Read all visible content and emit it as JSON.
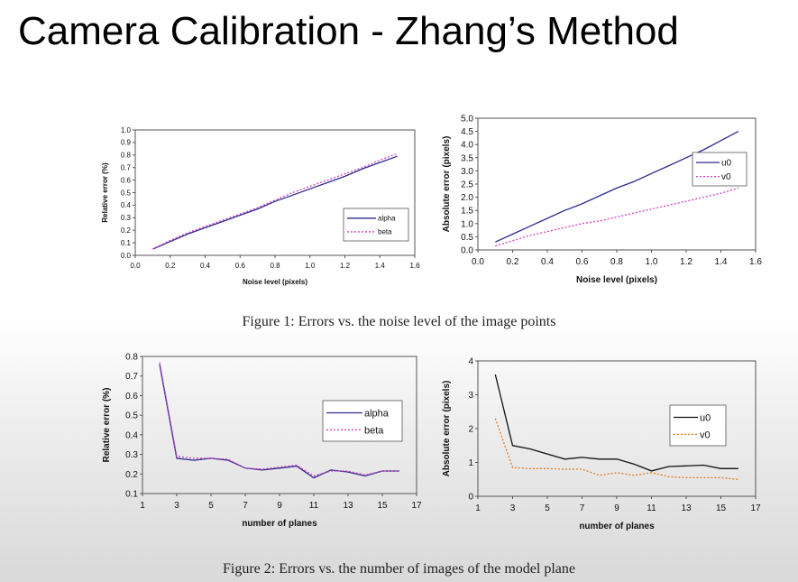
{
  "slide": {
    "title": "Camera Calibration - Zhang’s Method"
  },
  "figures": [
    {
      "caption": "Figure 1: Errors vs. the noise level of the image points"
    },
    {
      "caption": "Figure 2: Errors vs. the number of images of the model plane"
    }
  ],
  "chart_data": [
    {
      "type": "line",
      "xlabel": "Noise level (pixels)",
      "ylabel": "Relative error (%)",
      "xlim": [
        0,
        1.6
      ],
      "ylim": [
        0,
        1.0
      ],
      "xticks": [
        "0.0",
        "0.2",
        "0.4",
        "0.6",
        "0.8",
        "1.0",
        "1.2",
        "1.4",
        "1.6"
      ],
      "yticks": [
        "0.0",
        "0.1",
        "0.2",
        "0.3",
        "0.4",
        "0.5",
        "0.6",
        "0.7",
        "0.8",
        "0.9",
        "1.0"
      ],
      "grid": false,
      "legend_position": "bottom-right",
      "x": [
        0.1,
        0.2,
        0.3,
        0.4,
        0.5,
        0.6,
        0.7,
        0.8,
        0.9,
        1.0,
        1.1,
        1.2,
        1.3,
        1.4,
        1.5
      ],
      "series": [
        {
          "name": "alpha",
          "color": "#2b2b8c",
          "dash": "solid",
          "values": [
            0.05,
            0.11,
            0.17,
            0.22,
            0.27,
            0.32,
            0.37,
            0.43,
            0.48,
            0.53,
            0.58,
            0.63,
            0.69,
            0.74,
            0.79
          ]
        },
        {
          "name": "beta",
          "color": "#d23fc0",
          "dash": "dotted",
          "values": [
            0.05,
            0.12,
            0.18,
            0.23,
            0.28,
            0.33,
            0.38,
            0.44,
            0.5,
            0.55,
            0.6,
            0.65,
            0.7,
            0.76,
            0.81
          ]
        }
      ]
    },
    {
      "type": "line",
      "xlabel": "Noise level (pixels)",
      "ylabel": "Absolute error (pixels)",
      "xlim": [
        0,
        1.6
      ],
      "ylim": [
        0,
        5.0
      ],
      "xticks": [
        "0.0",
        "0.2",
        "0.4",
        "0.6",
        "0.8",
        "1.0",
        "1.2",
        "1.4",
        "1.6"
      ],
      "yticks": [
        "0.0",
        "0.5",
        "1.0",
        "1.5",
        "2.0",
        "2.5",
        "3.0",
        "3.5",
        "4.0",
        "4.5",
        "5.0"
      ],
      "grid": false,
      "legend_position": "top-right",
      "x": [
        0.1,
        0.2,
        0.3,
        0.4,
        0.5,
        0.6,
        0.7,
        0.8,
        0.9,
        1.0,
        1.1,
        1.2,
        1.3,
        1.4,
        1.5
      ],
      "series": [
        {
          "name": "u0",
          "color": "#2b2b8c",
          "dash": "solid",
          "values": [
            0.3,
            0.6,
            0.9,
            1.2,
            1.5,
            1.75,
            2.05,
            2.35,
            2.6,
            2.9,
            3.2,
            3.5,
            3.8,
            4.15,
            4.5
          ]
        },
        {
          "name": "v0",
          "color": "#d23fc0",
          "dash": "dotted",
          "values": [
            0.15,
            0.35,
            0.55,
            0.7,
            0.85,
            1.0,
            1.1,
            1.25,
            1.4,
            1.55,
            1.7,
            1.85,
            2.0,
            2.15,
            2.35
          ]
        }
      ]
    },
    {
      "type": "line",
      "xlabel": "number of planes",
      "ylabel": "Relative error (%)",
      "xlim": [
        1,
        17
      ],
      "ylim": [
        0.1,
        0.8
      ],
      "xticks": [
        "1",
        "3",
        "5",
        "7",
        "9",
        "11",
        "13",
        "15",
        "17"
      ],
      "yticks": [
        "0.1",
        "0.2",
        "0.3",
        "0.4",
        "0.5",
        "0.6",
        "0.7",
        "0.8"
      ],
      "grid": false,
      "legend_position": "right",
      "x": [
        2,
        3,
        4,
        5,
        6,
        7,
        8,
        9,
        10,
        11,
        12,
        13,
        14,
        15,
        16
      ],
      "series": [
        {
          "name": "alpha",
          "color": "#2b2b8c",
          "dash": "solid",
          "values": [
            0.76,
            0.28,
            0.27,
            0.28,
            0.27,
            0.23,
            0.22,
            0.23,
            0.24,
            0.18,
            0.22,
            0.21,
            0.19,
            0.215,
            0.215
          ]
        },
        {
          "name": "beta",
          "color": "#d23fc0",
          "dash": "dotted",
          "values": [
            0.77,
            0.29,
            0.28,
            0.28,
            0.275,
            0.23,
            0.225,
            0.235,
            0.245,
            0.19,
            0.215,
            0.215,
            0.195,
            0.215,
            0.215
          ]
        }
      ]
    },
    {
      "type": "line",
      "xlabel": "number of planes",
      "ylabel": "Absolute error (pixels)",
      "xlim": [
        1,
        17
      ],
      "ylim": [
        0,
        4
      ],
      "xticks": [
        "1",
        "3",
        "5",
        "7",
        "9",
        "11",
        "13",
        "15",
        "17"
      ],
      "yticks": [
        "0",
        "1",
        "2",
        "3",
        "4"
      ],
      "grid": false,
      "legend_position": "right",
      "x": [
        2,
        3,
        4,
        5,
        6,
        7,
        8,
        9,
        10,
        11,
        12,
        13,
        14,
        15,
        16
      ],
      "series": [
        {
          "name": "u0",
          "color": "#111111",
          "dash": "solid",
          "values": [
            3.6,
            1.5,
            1.4,
            1.25,
            1.1,
            1.15,
            1.1,
            1.1,
            0.95,
            0.75,
            0.88,
            0.9,
            0.92,
            0.82,
            0.82
          ]
        },
        {
          "name": "v0",
          "color": "#e07b20",
          "dash": "dotted",
          "values": [
            2.3,
            0.85,
            0.82,
            0.82,
            0.8,
            0.8,
            0.62,
            0.7,
            0.62,
            0.7,
            0.58,
            0.55,
            0.55,
            0.55,
            0.5
          ]
        }
      ]
    }
  ]
}
